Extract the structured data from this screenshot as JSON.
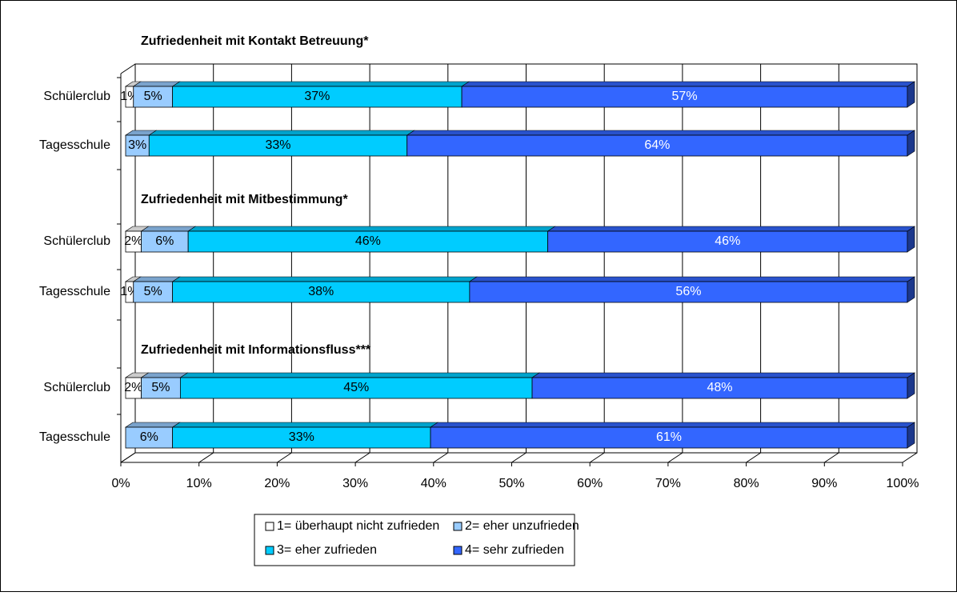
{
  "chart_data": {
    "type": "bar",
    "orientation": "horizontal",
    "stacked": true,
    "grid": true,
    "group_titles": [
      "Zufriedenheit mit Kontakt Betreuung*",
      "Zufriedenheit mit Mitbestimmung*",
      "Zufriedenheit mit Informationsfluss***"
    ],
    "categories": [
      "Schülerclub",
      "Tagesschule",
      "Schülerclub",
      "Tagesschule",
      "Schülerclub",
      "Tagesschule"
    ],
    "series": [
      {
        "name": "1= überhaupt nicht zufrieden",
        "color": "#ffffff",
        "label_color": "#000000",
        "values": [
          1,
          null,
          2,
          1,
          2,
          null
        ],
        "value_labels": [
          "1%",
          null,
          "2%",
          "1%",
          "2%",
          null
        ]
      },
      {
        "name": "2= eher unzufrieden",
        "color": "#99ccff",
        "label_color": "#000000",
        "values": [
          5,
          3,
          6,
          5,
          5,
          6
        ],
        "value_labels": [
          "5%",
          "3%",
          "6%",
          "5%",
          "5%",
          "6%"
        ]
      },
      {
        "name": "3= eher zufrieden",
        "color": "#00ccff",
        "label_color": "#000000",
        "values": [
          37,
          33,
          46,
          38,
          45,
          33
        ],
        "value_labels": [
          "37%",
          "33%",
          "46%",
          "38%",
          "45%",
          "33%"
        ]
      },
      {
        "name": "4= sehr zufrieden",
        "color": "#3366ff",
        "label_color": "#ffffff",
        "values": [
          57,
          64,
          46,
          56,
          48,
          61
        ],
        "value_labels": [
          "57%",
          "64%",
          "46%",
          "56%",
          "48%",
          "61%"
        ]
      }
    ],
    "xlim": [
      0,
      100
    ],
    "xticks": [
      {
        "value": 0,
        "label": "0%"
      },
      {
        "value": 10,
        "label": "10%"
      },
      {
        "value": 20,
        "label": "20%"
      },
      {
        "value": 30,
        "label": "30%"
      },
      {
        "value": 40,
        "label": "40%"
      },
      {
        "value": 50,
        "label": "50%"
      },
      {
        "value": 60,
        "label": "60%"
      },
      {
        "value": 70,
        "label": "70%"
      },
      {
        "value": 80,
        "label": "80%"
      },
      {
        "value": 90,
        "label": "90%"
      },
      {
        "value": 100,
        "label": "100%"
      }
    ]
  }
}
